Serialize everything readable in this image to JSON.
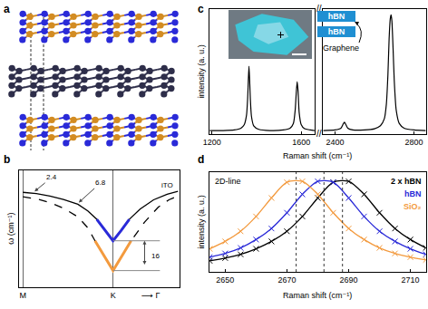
{
  "chart_data": [
    {
      "type": "structure",
      "title": "a",
      "colors": [
        "#d38c22",
        "#2a2ad8",
        "#2e2e4a"
      ]
    },
    {
      "type": "line",
      "title": "b",
      "ylabel": "ω (cm⁻¹)",
      "xlim": [
        -0.04,
        1.74
      ],
      "ylim": [
        -9,
        54
      ],
      "xticks": [
        {
          "value": 0,
          "label": "M"
        },
        {
          "value": 1,
          "label": "K"
        }
      ],
      "tick_labels": "x",
      "grid": "x",
      "series": [
        {
          "color": "#000000",
          "line_style": "solid",
          "x": [
            0,
            0.15,
            0.3,
            0.45,
            0.61,
            0.72,
            0.82,
            0.91,
            1.0,
            1.09,
            1.18,
            1.3,
            1.45,
            1.6,
            1.72
          ],
          "values": [
            42,
            41.3,
            40,
            38.2,
            35.6,
            32,
            27.5,
            21.5,
            16,
            21.5,
            27.5,
            33,
            38,
            41,
            42.5
          ]
        },
        {
          "color": "#000000",
          "line_style": "dashed",
          "x": [
            0,
            0.15,
            0.3,
            0.45,
            0.61,
            0.72,
            0.8,
            0.9,
            1.0,
            1.1,
            1.2,
            1.35,
            1.5,
            1.62,
            1.72
          ],
          "values": [
            39.6,
            38.5,
            36.5,
            33.5,
            28.8,
            23,
            16,
            8,
            0,
            8,
            16,
            26,
            34,
            38,
            40
          ]
        },
        {
          "color": "#2a2ad8",
          "line_style": "solid",
          "x": [
            0.82,
            0.91,
            1.0,
            1.09,
            1.18
          ],
          "values": [
            27.5,
            21.5,
            16,
            21.5,
            27.5
          ]
        },
        {
          "color": "#f39a3e",
          "line_style": "solid",
          "x": [
            0.8,
            0.9,
            1.0,
            1.1,
            1.2
          ],
          "values": [
            16,
            8,
            0,
            8,
            16
          ]
        }
      ],
      "annotations": [
        {
          "text": "2.4",
          "x": 0.32,
          "y": 50,
          "arrow_to": [
            0.13,
            42.5
          ]
        },
        {
          "text": "6.8",
          "x": 0.86,
          "y": 47,
          "arrow_to": [
            0.62,
            36.5
          ]
        },
        {
          "text": "iTO",
          "x": 1.6,
          "y": 46
        },
        {
          "text": "16",
          "x": 1.47,
          "y": 8,
          "span": [
            0,
            16
          ]
        },
        {
          "text": "⟶ Γ",
          "x": 1.42
        }
      ]
    },
    {
      "type": "line",
      "title": "c",
      "xlabel": "Raman shift (cm⁻¹)",
      "ylabel": "intensity (a. u.)",
      "ylim": [
        0,
        1.05
      ],
      "tick_labels": "x",
      "grid": false,
      "color": "#000000",
      "break_mark": "//",
      "segments": [
        {
          "xlim": [
            1190,
            1660
          ],
          "xticks": [
            1200,
            1600
          ],
          "x": [
            1190,
            1250,
            1300,
            1330,
            1345,
            1355,
            1360,
            1363,
            1366,
            1369,
            1372,
            1377,
            1387,
            1410,
            1460,
            1520,
            1550,
            1565,
            1573,
            1578,
            1582,
            1586,
            1591,
            1600,
            1615,
            1640,
            1660
          ],
          "values": [
            0.03,
            0.03,
            0.035,
            0.05,
            0.08,
            0.16,
            0.3,
            0.45,
            0.57,
            0.45,
            0.3,
            0.15,
            0.07,
            0.04,
            0.03,
            0.035,
            0.05,
            0.09,
            0.2,
            0.35,
            0.44,
            0.36,
            0.18,
            0.08,
            0.045,
            0.035,
            0.03
          ]
        },
        {
          "xlim": [
            2340,
            2860
          ],
          "xticks": [
            2400,
            2800
          ],
          "x": [
            2340,
            2400,
            2430,
            2440,
            2448,
            2455,
            2465,
            2490,
            2550,
            2600,
            2630,
            2650,
            2660,
            2668,
            2674,
            2680,
            2684,
            2688,
            2694,
            2700,
            2710,
            2725,
            2750,
            2800,
            2860
          ],
          "values": [
            0.03,
            0.035,
            0.05,
            0.08,
            0.1,
            0.08,
            0.05,
            0.035,
            0.035,
            0.045,
            0.07,
            0.13,
            0.25,
            0.5,
            0.8,
            0.97,
            1.0,
            0.95,
            0.72,
            0.45,
            0.2,
            0.09,
            0.05,
            0.035,
            0.03
          ]
        }
      ],
      "inset": {
        "labels": [
          "hBN",
          "hBN",
          "Graphene"
        ]
      }
    },
    {
      "type": "line",
      "title": "d",
      "subtitle": "2D-line",
      "xlabel": "Raman shift (cm⁻¹)",
      "ylabel": "intensity (a. u.)",
      "xlim": [
        2645,
        2715
      ],
      "ylim": [
        0,
        1.08
      ],
      "xticks": [
        2650,
        2670,
        2690,
        2710
      ],
      "tick_labels": "x",
      "grid": false,
      "legend": "upper right",
      "x": [
        2645,
        2650,
        2655,
        2660,
        2665,
        2670,
        2675,
        2680,
        2685,
        2690,
        2695,
        2700,
        2705,
        2710,
        2715
      ],
      "series": [
        {
          "name": "2 x hBN",
          "color": "#000000",
          "marker": "x",
          "line_style": "solid",
          "peak": 2688,
          "values": [
            0.12,
            0.15,
            0.19,
            0.25,
            0.33,
            0.44,
            0.6,
            0.8,
            0.97,
            0.98,
            0.84,
            0.64,
            0.47,
            0.35,
            0.26
          ]
        },
        {
          "name": "hBN",
          "color": "#2a2ad8",
          "marker": "x",
          "line_style": "solid",
          "peak": 2682,
          "values": [
            0.16,
            0.2,
            0.26,
            0.35,
            0.47,
            0.64,
            0.84,
            0.98,
            0.97,
            0.8,
            0.6,
            0.44,
            0.33,
            0.25,
            0.19
          ]
        },
        {
          "name": "SiO₂",
          "color": "#f39a3e",
          "marker": "x",
          "line_style": "solid",
          "peak": 2673,
          "values": [
            0.25,
            0.33,
            0.44,
            0.6,
            0.8,
            0.97,
            0.98,
            0.84,
            0.64,
            0.47,
            0.35,
            0.26,
            0.2,
            0.16,
            0.13
          ]
        }
      ]
    }
  ]
}
